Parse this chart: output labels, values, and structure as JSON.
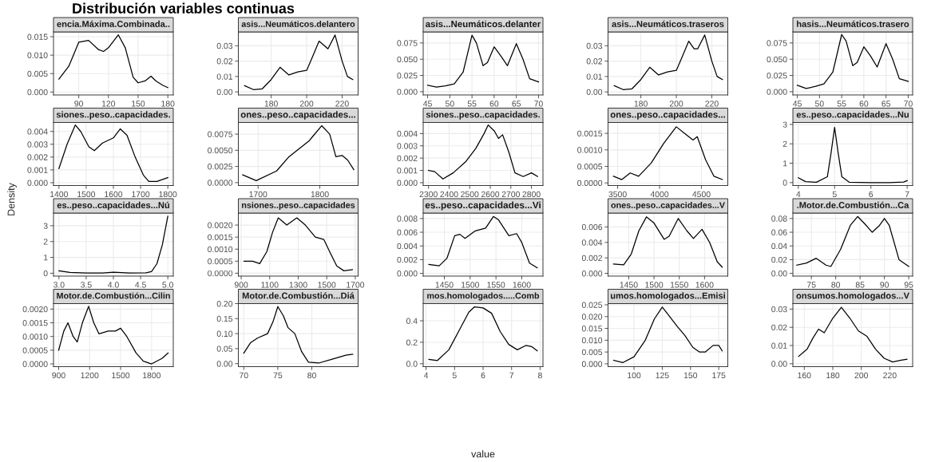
{
  "chart_data": [
    {
      "type": "other",
      "title": "Distribución variables continuas",
      "xlabel": "value",
      "ylabel": "Density"
    },
    {
      "type": "line",
      "title": "encia.Máxima.Combinada..",
      "color": "#000000",
      "grid": true,
      "xlim": [
        64.5,
        185.5
      ],
      "xticks": [
        90,
        120,
        150,
        180
      ],
      "ylim": [
        -0.0008,
        0.0163
      ],
      "yticks": [
        {
          "value": 0,
          "label": "0.000"
        },
        {
          "value": 0.005,
          "label": "0.005"
        },
        {
          "value": 0.01,
          "label": "0.010"
        },
        {
          "value": 0.015,
          "label": "0.015"
        }
      ],
      "x": [
        70,
        80,
        90,
        100,
        110,
        115,
        120,
        130,
        137,
        145,
        150,
        157,
        163,
        168,
        175,
        180
      ],
      "values": [
        0.0035,
        0.007,
        0.0135,
        0.014,
        0.0115,
        0.011,
        0.012,
        0.0155,
        0.012,
        0.004,
        0.0025,
        0.003,
        0.0043,
        0.003,
        0.0018,
        0.0012
      ]
    },
    {
      "type": "line",
      "title": "asis...Neumáticos.delantero",
      "color": "#000000",
      "grid": true,
      "xlim": [
        161.5,
        229
      ],
      "xticks": [
        180,
        200,
        220
      ],
      "ylim": [
        -0.002,
        0.039
      ],
      "yticks": [
        {
          "value": 0,
          "label": "0.00"
        },
        {
          "value": 0.01,
          "label": "0.01"
        },
        {
          "value": 0.02,
          "label": "0.02"
        },
        {
          "value": 0.03,
          "label": "0.03"
        }
      ],
      "x": [
        165,
        170,
        175,
        180,
        185,
        190,
        195,
        200,
        203,
        207,
        210,
        212,
        216,
        220,
        223,
        226
      ],
      "values": [
        0.004,
        0.0015,
        0.002,
        0.008,
        0.016,
        0.011,
        0.013,
        0.014,
        0.022,
        0.033,
        0.03,
        0.028,
        0.037,
        0.02,
        0.01,
        0.008
      ]
    },
    {
      "type": "line",
      "title": "asis...Neumáticos.delanter",
      "color": "#000000",
      "grid": true,
      "xlim": [
        44,
        71
      ],
      "xticks": [
        45,
        50,
        55,
        60,
        65,
        70
      ],
      "ylim": [
        -0.005,
        0.092
      ],
      "yticks": [
        {
          "value": 0,
          "label": "0.000"
        },
        {
          "value": 0.025,
          "label": "0.025"
        },
        {
          "value": 0.05,
          "label": "0.050"
        },
        {
          "value": 0.075,
          "label": "0.075"
        }
      ],
      "x": [
        45,
        47,
        49,
        51,
        53,
        55,
        56,
        57.5,
        58.5,
        60,
        61.5,
        63,
        65,
        66.5,
        68,
        70
      ],
      "values": [
        0.01,
        0.007,
        0.009,
        0.012,
        0.03,
        0.087,
        0.075,
        0.04,
        0.045,
        0.069,
        0.055,
        0.04,
        0.074,
        0.05,
        0.02,
        0.015
      ]
    },
    {
      "type": "line",
      "title": "asis...Neumáticos.traseros",
      "color": "#000000",
      "grid": true,
      "xlim": [
        161.5,
        229
      ],
      "xticks": [
        180,
        200,
        220
      ],
      "ylim": [
        -0.002,
        0.039
      ],
      "yticks": [
        {
          "value": 0,
          "label": "0.00"
        },
        {
          "value": 0.01,
          "label": "0.01"
        },
        {
          "value": 0.02,
          "label": "0.02"
        },
        {
          "value": 0.03,
          "label": "0.03"
        }
      ],
      "x": [
        165,
        170,
        175,
        180,
        185,
        190,
        195,
        200,
        203,
        207,
        210,
        212,
        216,
        220,
        223,
        226
      ],
      "values": [
        0.004,
        0.0015,
        0.002,
        0.008,
        0.016,
        0.011,
        0.013,
        0.014,
        0.022,
        0.033,
        0.028,
        0.028,
        0.037,
        0.02,
        0.01,
        0.008
      ]
    },
    {
      "type": "line",
      "title": "hasis...Neumáticos.trasero",
      "color": "#000000",
      "grid": true,
      "xlim": [
        44,
        71
      ],
      "xticks": [
        45,
        50,
        55,
        60,
        65,
        70
      ],
      "ylim": [
        -0.005,
        0.092
      ],
      "yticks": [
        {
          "value": 0,
          "label": "0.000"
        },
        {
          "value": 0.025,
          "label": "0.025"
        },
        {
          "value": 0.05,
          "label": "0.050"
        },
        {
          "value": 0.075,
          "label": "0.075"
        }
      ],
      "x": [
        45,
        47,
        49,
        51,
        53,
        55,
        56,
        57.5,
        58.5,
        60,
        61.5,
        63,
        65,
        66.5,
        68,
        70
      ],
      "values": [
        0.01,
        0.005,
        0.008,
        0.012,
        0.03,
        0.088,
        0.078,
        0.04,
        0.045,
        0.069,
        0.055,
        0.038,
        0.074,
        0.05,
        0.02,
        0.016
      ]
    },
    {
      "type": "line",
      "title": "siones..peso..capacidades.",
      "color": "#000000",
      "grid": true,
      "xlim": [
        1380,
        1820
      ],
      "xticks": [
        1400,
        1500,
        1600,
        1700,
        1800
      ],
      "ylim": [
        -0.00022,
        0.0047
      ],
      "yticks": [
        {
          "value": 0,
          "label": "0.000"
        },
        {
          "value": 0.001,
          "label": "0.001"
        },
        {
          "value": 0.002,
          "label": "0.002"
        },
        {
          "value": 0.003,
          "label": "0.003"
        },
        {
          "value": 0.004,
          "label": "0.004"
        }
      ],
      "x": [
        1400,
        1430,
        1460,
        1480,
        1510,
        1530,
        1560,
        1600,
        1625,
        1650,
        1680,
        1710,
        1730,
        1760,
        1800
      ],
      "values": [
        0.0011,
        0.003,
        0.0045,
        0.004,
        0.0028,
        0.0025,
        0.0031,
        0.0035,
        0.0042,
        0.0037,
        0.002,
        0.0006,
        0.0001,
        0.0001,
        0.0004
      ]
    },
    {
      "type": "line",
      "title": "ones..peso..capacidades...",
      "color": "#000000",
      "grid": true,
      "xlim": [
        1668,
        1862
      ],
      "xticks": [
        1700,
        1800
      ],
      "ylim": [
        -0.00045,
        0.0093
      ],
      "yticks": [
        {
          "value": 0,
          "label": "0.0000"
        },
        {
          "value": 0.0025,
          "label": "0.0025"
        },
        {
          "value": 0.005,
          "label": "0.0050"
        },
        {
          "value": 0.0075,
          "label": "0.0075"
        }
      ],
      "x": [
        1675,
        1697,
        1730,
        1750,
        1770,
        1783,
        1789,
        1803,
        1816,
        1826,
        1836,
        1845,
        1855
      ],
      "values": [
        0.0012,
        0.0003,
        0.0018,
        0.004,
        0.0055,
        0.0065,
        0.0072,
        0.0088,
        0.0075,
        0.004,
        0.0042,
        0.0035,
        0.002
      ]
    },
    {
      "type": "line",
      "title": "siones..peso..capacidades.",
      "color": "#000000",
      "grid": true,
      "xlim": [
        2274,
        2856
      ],
      "xticks": [
        2300,
        2400,
        2500,
        2600,
        2700,
        2800
      ],
      "ylim": [
        -0.00023,
        0.0049
      ],
      "yticks": [
        {
          "value": 0,
          "label": "0.000"
        },
        {
          "value": 0.001,
          "label": "0.001"
        },
        {
          "value": 0.002,
          "label": "0.002"
        },
        {
          "value": 0.003,
          "label": "0.003"
        },
        {
          "value": 0.004,
          "label": "0.004"
        }
      ],
      "x": [
        2300,
        2330,
        2370,
        2420,
        2480,
        2530,
        2570,
        2590,
        2620,
        2640,
        2660,
        2690,
        2720,
        2760,
        2800,
        2830
      ],
      "values": [
        0.001,
        0.0009,
        0.0003,
        0.0008,
        0.0017,
        0.0028,
        0.004,
        0.0047,
        0.0042,
        0.0036,
        0.0039,
        0.0025,
        0.0008,
        0.0005,
        0.0008,
        0.0005
      ]
    },
    {
      "type": "line",
      "title": "ones..peso..capacidades...",
      "color": "#000000",
      "grid": true,
      "xlim": [
        3385,
        4815
      ],
      "xticks": [
        3500,
        4000,
        4500
      ],
      "ylim": [
        -8e-05,
        0.00183
      ],
      "yticks": [
        {
          "value": 0,
          "label": "0.0000"
        },
        {
          "value": 0.0005,
          "label": "0.0005"
        },
        {
          "value": 0.001,
          "label": "0.0010"
        },
        {
          "value": 0.0015,
          "label": "0.0015"
        }
      ],
      "x": [
        3450,
        3550,
        3650,
        3750,
        3900,
        4050,
        4200,
        4300,
        4400,
        4450,
        4550,
        4650,
        4750
      ],
      "values": [
        0.0002,
        0.0001,
        0.0003,
        0.0002,
        0.0006,
        0.0012,
        0.0017,
        0.0015,
        0.0013,
        0.0014,
        0.0007,
        0.0002,
        0.0001
      ]
    },
    {
      "type": "line",
      "title": "es..peso..capacidades...Nu",
      "color": "#000000",
      "grid": true,
      "xlim": [
        3.85,
        7.15
      ],
      "xticks": [
        4,
        5,
        6,
        7
      ],
      "ylim": [
        -0.15,
        3.1
      ],
      "yticks": [
        0,
        1,
        2,
        3
      ],
      "x": [
        4,
        4.2,
        4.5,
        4.8,
        4.9,
        5.0,
        5.1,
        5.2,
        5.4,
        6,
        6.5,
        6.9,
        7
      ],
      "values": [
        0.25,
        0.05,
        0.02,
        0.3,
        1.5,
        2.85,
        1.5,
        0.3,
        0.02,
        0,
        0,
        0.03,
        0.1
      ]
    },
    {
      "type": "line",
      "title": "es..peso..capacidades...Nú",
      "color": "#000000",
      "grid": true,
      "xlim": [
        2.9,
        5.1
      ],
      "xticks": [
        {
          "value": 3,
          "label": "3.0"
        },
        3.5,
        {
          "value": 4,
          "label": "4.0"
        },
        4.5,
        {
          "value": 5,
          "label": "5.0"
        }
      ],
      "ylim": [
        -0.18,
        3.8
      ],
      "yticks": [
        0,
        1,
        2,
        3
      ],
      "x": [
        3.0,
        3.2,
        3.5,
        3.8,
        4.0,
        4.3,
        4.6,
        4.7,
        4.8,
        4.9,
        5.0
      ],
      "values": [
        0.15,
        0.05,
        0.01,
        0.02,
        0.06,
        0.01,
        0.03,
        0.1,
        0.6,
        1.8,
        3.6
      ]
    },
    {
      "type": "line",
      "title": "nsiones..peso..capacidades",
      "color": "#000000",
      "grid": true,
      "xlim": [
        880,
        1720
      ],
      "xticks": [
        900,
        1100,
        1300,
        1500,
        1700
      ],
      "ylim": [
        -0.00012,
        0.0025
      ],
      "yticks": [
        {
          "value": 0,
          "label": "0.0000"
        },
        {
          "value": 0.0005,
          "label": "0.0005"
        },
        {
          "value": 0.001,
          "label": "0.0010"
        },
        {
          "value": 0.0015,
          "label": "0.0015"
        },
        {
          "value": 0.002,
          "label": "0.0020"
        }
      ],
      "x": [
        920,
        980,
        1030,
        1080,
        1120,
        1160,
        1220,
        1290,
        1350,
        1420,
        1480,
        1520,
        1570,
        1620,
        1680
      ],
      "values": [
        0.0005,
        0.0005,
        0.0004,
        0.0009,
        0.0017,
        0.0023,
        0.002,
        0.0023,
        0.002,
        0.0015,
        0.0014,
        0.0009,
        0.0003,
        0.0001,
        0.00015
      ]
    },
    {
      "type": "line",
      "title": "es..peso..capacidades...Vi",
      "color": "#000000",
      "grid": true,
      "xlim": [
        1409,
        1641
      ],
      "xticks": [
        1450,
        1500,
        1550,
        1600
      ],
      "ylim": [
        -0.0004,
        0.0088
      ],
      "yticks": [
        {
          "value": 0,
          "label": "0.000"
        },
        {
          "value": 0.002,
          "label": "0.002"
        },
        {
          "value": 0.004,
          "label": "0.004"
        },
        {
          "value": 0.006,
          "label": "0.006"
        },
        {
          "value": 0.008,
          "label": "0.008"
        }
      ],
      "x": [
        1420,
        1440,
        1455,
        1470,
        1480,
        1490,
        1510,
        1530,
        1545,
        1555,
        1575,
        1590,
        1600,
        1615,
        1630
      ],
      "values": [
        0.0013,
        0.0011,
        0.0022,
        0.0055,
        0.0057,
        0.0051,
        0.0062,
        0.0066,
        0.0083,
        0.0078,
        0.0055,
        0.0058,
        0.0045,
        0.0015,
        0.0008
      ]
    },
    {
      "type": "line",
      "title": "ones..peso..capacidades...V",
      "color": "#000000",
      "grid": true,
      "xlim": [
        1409,
        1646
      ],
      "xticks": [
        1450,
        1500,
        1550,
        1600
      ],
      "ylim": [
        -0.00036,
        0.0078
      ],
      "yticks": [
        {
          "value": 0,
          "label": "0.000"
        },
        {
          "value": 0.002,
          "label": "0.002"
        },
        {
          "value": 0.004,
          "label": "0.004"
        },
        {
          "value": 0.006,
          "label": "0.006"
        }
      ],
      "x": [
        1420,
        1440,
        1455,
        1470,
        1485,
        1500,
        1520,
        1530,
        1548,
        1565,
        1578,
        1595,
        1610,
        1625,
        1635
      ],
      "values": [
        0.0012,
        0.0011,
        0.0025,
        0.0055,
        0.0073,
        0.0065,
        0.0044,
        0.0048,
        0.0071,
        0.0055,
        0.0045,
        0.0057,
        0.004,
        0.0015,
        0.0008
      ]
    },
    {
      "type": "line",
      "title": ".Motor.de.Combustión...Ca",
      "color": "#000000",
      "grid": true,
      "xlim": [
        71.2,
        95.8
      ],
      "xticks": [
        75,
        80,
        85,
        90,
        95
      ],
      "ylim": [
        -0.004,
        0.088
      ],
      "yticks": [
        {
          "value": 0,
          "label": "0.00"
        },
        {
          "value": 0.02,
          "label": "0.02"
        },
        {
          "value": 0.04,
          "label": "0.04"
        },
        {
          "value": 0.06,
          "label": "0.06"
        },
        {
          "value": 0.08,
          "label": "0.08"
        }
      ],
      "x": [
        72,
        74,
        76,
        78,
        79,
        81,
        83,
        84.5,
        86,
        87.5,
        89,
        90,
        91,
        93,
        95
      ],
      "values": [
        0.012,
        0.015,
        0.022,
        0.012,
        0.01,
        0.035,
        0.07,
        0.083,
        0.072,
        0.06,
        0.07,
        0.08,
        0.07,
        0.02,
        0.01
      ]
    },
    {
      "type": "line",
      "title": "Motor.de.Combustión...Cilin",
      "color": "#000000",
      "grid": true,
      "xlim": [
        850,
        2010
      ],
      "xticks": [
        900,
        1200,
        1500,
        1800
      ],
      "ylim": [
        -0.0001,
        0.0022
      ],
      "yticks": [
        {
          "value": 0,
          "label": "0.0000"
        },
        {
          "value": 0.0005,
          "label": "0.0005"
        },
        {
          "value": 0.001,
          "label": "0.0010"
        },
        {
          "value": 0.0015,
          "label": "0.0015"
        },
        {
          "value": 0.002,
          "label": "0.0020"
        }
      ],
      "x": [
        900,
        950,
        990,
        1040,
        1080,
        1130,
        1190,
        1240,
        1290,
        1380,
        1450,
        1500,
        1560,
        1650,
        1720,
        1800,
        1900,
        1960
      ],
      "values": [
        0.0005,
        0.0012,
        0.0015,
        0.001,
        0.0008,
        0.0015,
        0.0021,
        0.0015,
        0.0011,
        0.0012,
        0.0012,
        0.0013,
        0.001,
        0.0004,
        0.0001,
        0,
        0.0002,
        0.0004
      ]
    },
    {
      "type": "line",
      "title": "Motor.de.Combustión...Diá",
      "color": "#000000",
      "grid": true,
      "xlim": [
        69.2,
        86.8
      ],
      "xticks": [
        70,
        75,
        80
      ],
      "ylim": [
        -0.01,
        0.2
      ],
      "yticks": [
        {
          "value": 0,
          "label": "0.00"
        },
        {
          "value": 0.05,
          "label": "0.05"
        },
        {
          "value": 0.1,
          "label": "0.10"
        },
        {
          "value": 0.15,
          "label": "0.15"
        },
        {
          "value": 0.2,
          "label": "0.20"
        }
      ],
      "x": [
        70,
        71,
        72,
        73.5,
        74.3,
        75,
        75.8,
        76.5,
        77.5,
        78.5,
        79.5,
        81,
        83,
        85,
        86
      ],
      "values": [
        0.035,
        0.07,
        0.085,
        0.1,
        0.14,
        0.19,
        0.16,
        0.12,
        0.1,
        0.04,
        0.005,
        0.002,
        0.015,
        0.028,
        0.031
      ]
    },
    {
      "type": "line",
      "title": "mos.homologados.....Comb",
      "color": "#000000",
      "grid": true,
      "xlim": [
        3.9,
        8.1
      ],
      "xticks": [
        4,
        5,
        6,
        7,
        8
      ],
      "ylim": [
        -0.027,
        0.56
      ],
      "yticks": [
        {
          "value": 0,
          "label": "0.0"
        },
        {
          "value": 0.2,
          "label": "0.2"
        },
        {
          "value": 0.4,
          "label": "0.4"
        }
      ],
      "x": [
        4.1,
        4.4,
        4.8,
        5.2,
        5.5,
        5.7,
        6.0,
        6.3,
        6.6,
        6.9,
        7.2,
        7.5,
        7.7,
        7.9
      ],
      "values": [
        0.04,
        0.03,
        0.13,
        0.33,
        0.48,
        0.53,
        0.52,
        0.47,
        0.3,
        0.18,
        0.13,
        0.17,
        0.16,
        0.12
      ]
    },
    {
      "type": "line",
      "title": "umos.homologados...Emisi",
      "color": "#000000",
      "grid": true,
      "xlim": [
        77,
        183
      ],
      "xticks": [
        100,
        125,
        150,
        175
      ],
      "ylim": [
        -0.0012,
        0.0255
      ],
      "yticks": [
        {
          "value": 0,
          "label": "0.000"
        },
        {
          "value": 0.005,
          "label": "0.005"
        },
        {
          "value": 0.01,
          "label": "0.010"
        },
        {
          "value": 0.015,
          "label": "0.015"
        },
        {
          "value": 0.02,
          "label": "0.020"
        },
        {
          "value": 0.025,
          "label": "0.025"
        }
      ],
      "x": [
        82,
        90,
        100,
        110,
        118,
        125,
        130,
        138,
        145,
        152,
        158,
        163,
        170,
        175,
        178
      ],
      "values": [
        0.0015,
        0.0005,
        0.003,
        0.01,
        0.019,
        0.024,
        0.021,
        0.016,
        0.012,
        0.007,
        0.005,
        0.005,
        0.0078,
        0.0078,
        0.0055
      ]
    },
    {
      "type": "line",
      "title": "onsumos.homologados...V",
      "color": "#000000",
      "grid": true,
      "xlim": [
        152,
        236
      ],
      "xticks": [
        160,
        180,
        200,
        220
      ],
      "ylim": [
        -0.0016,
        0.033
      ],
      "yticks": [
        {
          "value": 0,
          "label": "0.00"
        },
        {
          "value": 0.01,
          "label": "0.01"
        },
        {
          "value": 0.02,
          "label": "0.02"
        },
        {
          "value": 0.03,
          "label": "0.03"
        }
      ],
      "x": [
        156,
        162,
        166,
        170,
        174,
        180,
        186,
        192,
        198,
        204,
        210,
        216,
        222,
        228,
        232
      ],
      "values": [
        0.004,
        0.008,
        0.014,
        0.019,
        0.017,
        0.025,
        0.031,
        0.025,
        0.018,
        0.015,
        0.008,
        0.003,
        0.001,
        0.002,
        0.0025
      ]
    }
  ]
}
